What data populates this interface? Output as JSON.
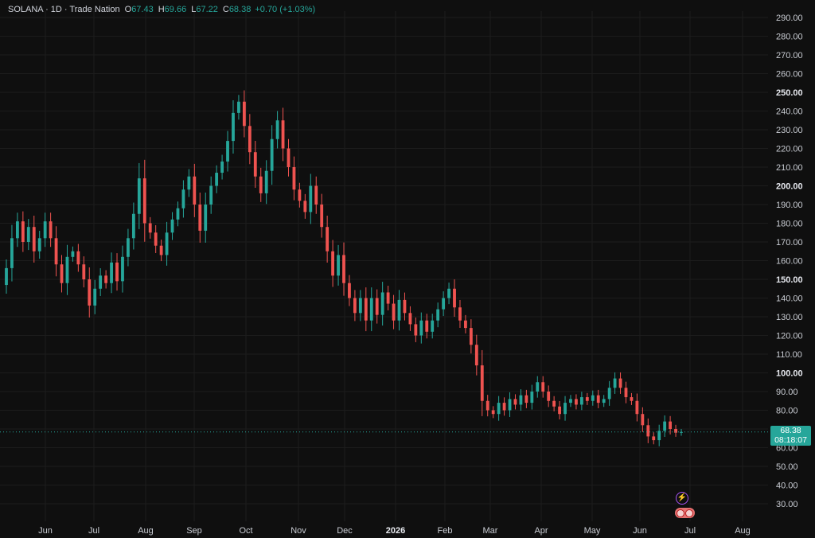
{
  "header": {
    "symbol": "SOLANA · 1D · Trade Nation",
    "open_label": "O",
    "open": "67.43",
    "high_label": "H",
    "high": "69.66",
    "low_label": "L",
    "low": "67.22",
    "close_label": "C",
    "close": "68.38",
    "change": "+0.70 (+1.03%)"
  },
  "price_tag": {
    "price": "68.38",
    "countdown": "08:18:07"
  },
  "icons": {
    "event": "lightning-icon",
    "earnings": "flag-icon"
  },
  "colors": {
    "up": "#26a69a",
    "down": "#ef5350",
    "background": "#0f0f0f",
    "grid": "#1c1c1c"
  },
  "chart_data": {
    "type": "candlestick",
    "title": "",
    "ylim": [
      20,
      295
    ],
    "y_ticks": [
      "290.00",
      "280.00",
      "270.00",
      "260.00",
      "250.00",
      "240.00",
      "230.00",
      "220.00",
      "210.00",
      "200.00",
      "190.00",
      "180.00",
      "170.00",
      "160.00",
      "150.00",
      "140.00",
      "130.00",
      "120.00",
      "110.00",
      "100.00",
      "90.00",
      "80.00",
      "70.00",
      "60.00",
      "50.00",
      "40.00",
      "30.00"
    ],
    "y_bold": [
      "250.00",
      "200.00",
      "150.00",
      "100.00"
    ],
    "x_ticks": [
      "Jun",
      "Jul",
      "Aug",
      "Sep",
      "Oct",
      "Nov",
      "Dec",
      "2026",
      "Feb",
      "Mar",
      "Apr",
      "May",
      "Jun",
      "Jul",
      "Aug"
    ],
    "x_bold": [
      "2026"
    ],
    "last_price": 68.38,
    "series": [
      {
        "values": [
          [
            147,
            156
          ],
          [
            156,
            172
          ],
          [
            172,
            181
          ],
          [
            181,
            170
          ],
          [
            170,
            178
          ],
          [
            178,
            165
          ],
          [
            165,
            172
          ],
          [
            172,
            181
          ],
          [
            181,
            172
          ],
          [
            172,
            158
          ],
          [
            158,
            148
          ],
          [
            148,
            162
          ],
          [
            162,
            165
          ],
          [
            165,
            158
          ],
          [
            158,
            150
          ],
          [
            150,
            136
          ],
          [
            136,
            145
          ],
          [
            145,
            152
          ],
          [
            152,
            148
          ],
          [
            148,
            159
          ],
          [
            159,
            149
          ],
          [
            149,
            162
          ],
          [
            162,
            172
          ],
          [
            172,
            185
          ],
          [
            185,
            204
          ],
          [
            204,
            180
          ],
          [
            180,
            175
          ],
          [
            175,
            168
          ],
          [
            168,
            163
          ],
          [
            163,
            175
          ],
          [
            175,
            182
          ],
          [
            182,
            188
          ],
          [
            188,
            198
          ],
          [
            198,
            205
          ],
          [
            205,
            190
          ],
          [
            190,
            176
          ],
          [
            176,
            190
          ],
          [
            190,
            200
          ],
          [
            200,
            207
          ],
          [
            207,
            213
          ],
          [
            213,
            224
          ],
          [
            224,
            239
          ],
          [
            239,
            245
          ],
          [
            245,
            232
          ],
          [
            232,
            218
          ],
          [
            218,
            205
          ],
          [
            205,
            196
          ],
          [
            196,
            208
          ],
          [
            208,
            225
          ],
          [
            225,
            235
          ],
          [
            235,
            220
          ],
          [
            220,
            210
          ],
          [
            210,
            198
          ],
          [
            198,
            192
          ],
          [
            192,
            186
          ],
          [
            186,
            200
          ],
          [
            200,
            190
          ],
          [
            190,
            178
          ],
          [
            178,
            165
          ],
          [
            165,
            152
          ],
          [
            152,
            163
          ],
          [
            163,
            148
          ],
          [
            148,
            140
          ],
          [
            140,
            132
          ],
          [
            132,
            140
          ],
          [
            140,
            128
          ],
          [
            128,
            140
          ],
          [
            140,
            131
          ],
          [
            131,
            143
          ],
          [
            143,
            137
          ],
          [
            137,
            128
          ],
          [
            128,
            139
          ],
          [
            139,
            132
          ],
          [
            132,
            126
          ],
          [
            126,
            120
          ],
          [
            120,
            128
          ],
          [
            128,
            122
          ],
          [
            122,
            128
          ],
          [
            128,
            134
          ],
          [
            134,
            140
          ],
          [
            140,
            145
          ],
          [
            145,
            135
          ],
          [
            135,
            128
          ],
          [
            128,
            124
          ],
          [
            124,
            115
          ],
          [
            115,
            104
          ],
          [
            104,
            85
          ],
          [
            85,
            80
          ],
          [
            80,
            78
          ],
          [
            78,
            84
          ],
          [
            84,
            80
          ],
          [
            80,
            86
          ],
          [
            86,
            83
          ],
          [
            83,
            88
          ],
          [
            88,
            84
          ],
          [
            84,
            90
          ],
          [
            90,
            95
          ],
          [
            95,
            90
          ],
          [
            90,
            85
          ],
          [
            85,
            82
          ],
          [
            82,
            78
          ],
          [
            78,
            84
          ],
          [
            84,
            86
          ],
          [
            86,
            83
          ],
          [
            83,
            87
          ],
          [
            87,
            85
          ],
          [
            85,
            88
          ],
          [
            88,
            84
          ],
          [
            84,
            86
          ],
          [
            86,
            92
          ],
          [
            92,
            97
          ],
          [
            97,
            92
          ],
          [
            92,
            87
          ],
          [
            87,
            85
          ],
          [
            85,
            78
          ],
          [
            78,
            72
          ],
          [
            72,
            66
          ],
          [
            66,
            64
          ],
          [
            64,
            69
          ],
          [
            69,
            74
          ],
          [
            74,
            70
          ],
          [
            70,
            68
          ],
          [
            68,
            68.38
          ]
        ]
      }
    ]
  }
}
